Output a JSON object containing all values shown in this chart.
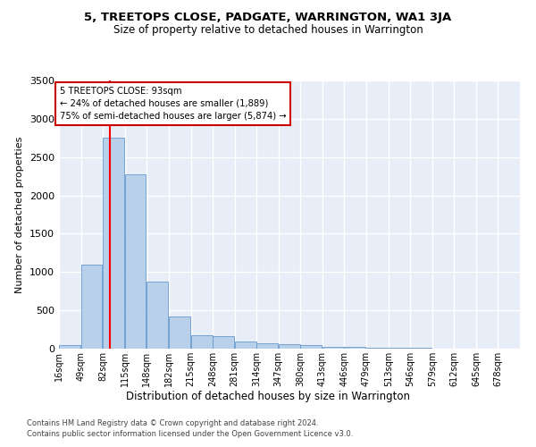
{
  "title": "5, TREETOPS CLOSE, PADGATE, WARRINGTON, WA1 3JA",
  "subtitle": "Size of property relative to detached houses in Warrington",
  "xlabel": "Distribution of detached houses by size in Warrington",
  "ylabel": "Number of detached properties",
  "bar_color": "#b8d0ea",
  "bar_edge_color": "#6699cc",
  "background_color": "#e8eef8",
  "grid_color": "#ffffff",
  "red_line_x": 93,
  "annotation_text": "5 TREETOPS CLOSE: 93sqm\n← 24% of detached houses are smaller (1,889)\n75% of semi-detached houses are larger (5,874) →",
  "annotation_box_color": "#ffffff",
  "annotation_box_edge_color": "#cc0000",
  "footer_line1": "Contains HM Land Registry data © Crown copyright and database right 2024.",
  "footer_line2": "Contains public sector information licensed under the Open Government Licence v3.0.",
  "bin_edges": [
    16,
    49,
    82,
    115,
    148,
    182,
    215,
    248,
    281,
    314,
    347,
    380,
    413,
    446,
    479,
    513,
    546,
    579,
    612,
    645,
    678
  ],
  "bin_labels": [
    "16sqm",
    "49sqm",
    "82sqm",
    "115sqm",
    "148sqm",
    "182sqm",
    "215sqm",
    "248sqm",
    "281sqm",
    "314sqm",
    "347sqm",
    "380sqm",
    "413sqm",
    "446sqm",
    "479sqm",
    "513sqm",
    "546sqm",
    "579sqm",
    "612sqm",
    "645sqm",
    "678sqm"
  ],
  "counts": [
    50,
    1100,
    2750,
    2280,
    870,
    415,
    170,
    160,
    95,
    68,
    55,
    43,
    28,
    22,
    15,
    8,
    6,
    4,
    2,
    1
  ],
  "ylim": [
    0,
    3500
  ],
  "yticks": [
    0,
    500,
    1000,
    1500,
    2000,
    2500,
    3000,
    3500
  ]
}
